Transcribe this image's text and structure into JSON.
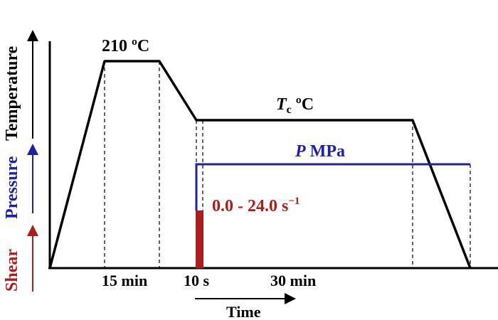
{
  "axes": {
    "temperature_label": "Temperature",
    "pressure_label": "Pressure",
    "shear_label": "Shear",
    "time_label": "Time"
  },
  "annotations": {
    "hold_temperature": "210 ºC",
    "tc_symbol": "T",
    "tc_subscript": "c",
    "tc_unit": " ºC",
    "pressure_symbol": "P",
    "pressure_unit": " MPa",
    "shear_rate_text": "0.0 - 24.0 s",
    "shear_rate_exponent": "−1"
  },
  "durations": {
    "hold_time": "15 min",
    "shear_time": "10 s",
    "isothermal_time": "30 min"
  },
  "colors": {
    "temperature": "#000000",
    "pressure": "#1f1fa8",
    "shear": "#b01c1c",
    "guide": "#000000"
  }
}
